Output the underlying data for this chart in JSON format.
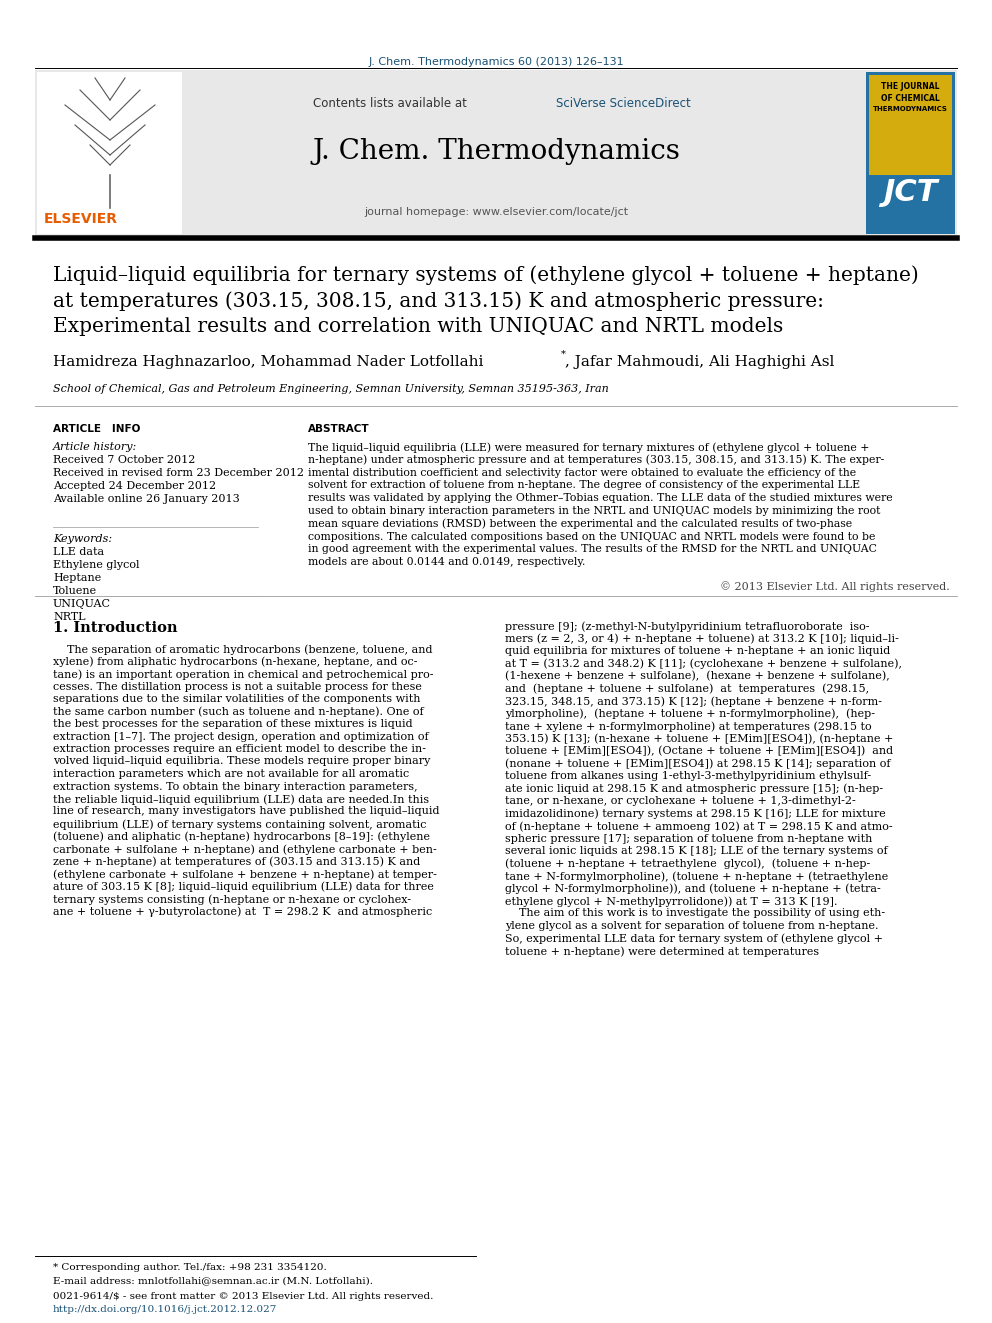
{
  "journal_ref": "J. Chem. Thermodynamics 60 (2013) 126–131",
  "journal_ref_color": "#1a5276",
  "header_bg_color": "#e8e8e8",
  "journal_name": "J. Chem. Thermodynamics",
  "journal_homepage": "journal homepage: www.elsevier.com/locate/jct",
  "title_line1": "Liquid–liquid equilibria for ternary systems of (ethylene glycol + toluene + heptane)",
  "title_line2": "at temperatures (303.15, 308.15, and 313.15) K and atmospheric pressure:",
  "title_line3": "Experimental results and correlation with UNIQUAC and NRTL models",
  "author_main": "Hamidreza Haghnazarloo, Mohammad Nader Lotfollahi",
  "author_rest": ", Jafar Mahmoudi, Ali Haghighi Asl",
  "affiliation": "School of Chemical, Gas and Petroleum Engineering, Semnan University, Semnan 35195-363, Iran",
  "article_info_title": "ARTICLE   INFO",
  "article_history_title": "Article history:",
  "article_history": [
    "Received 7 October 2012",
    "Received in revised form 23 December 2012",
    "Accepted 24 December 2012",
    "Available online 26 January 2013"
  ],
  "keywords_title": "Keywords:",
  "keywords": [
    "LLE data",
    "Ethylene glycol",
    "Heptane",
    "Toluene",
    "UNIQUAC",
    "NRTL"
  ],
  "abstract_title": "ABSTRACT",
  "abstract_lines": [
    "The liquid–liquid equilibria (LLE) were measured for ternary mixtures of (ethylene glycol + toluene +",
    "n-heptane) under atmospheric pressure and at temperatures (303.15, 308.15, and 313.15) K. The exper-",
    "imental distribution coefficient and selectivity factor were obtained to evaluate the efficiency of the",
    "solvent for extraction of toluene from n-heptane. The degree of consistency of the experimental LLE",
    "results was validated by applying the Othmer–Tobias equation. The LLE data of the studied mixtures were",
    "used to obtain binary interaction parameters in the NRTL and UNIQUAC models by minimizing the root",
    "mean square deviations (RMSD) between the experimental and the calculated results of two-phase",
    "compositions. The calculated compositions based on the UNIQUAC and NRTL models were found to be",
    "in good agreement with the experimental values. The results of the RMSD for the NRTL and UNIQUAC",
    "models are about 0.0144 and 0.0149, respectively."
  ],
  "abstract_copyright": "© 2013 Elsevier Ltd. All rights reserved.",
  "intro_title": "1. Introduction",
  "intro_col1_lines": [
    "    The separation of aromatic hydrocarbons (benzene, toluene, and",
    "xylene) from aliphatic hydrocarbons (n-hexane, heptane, and oc-",
    "tane) is an important operation in chemical and petrochemical pro-",
    "cesses. The distillation process is not a suitable process for these",
    "separations due to the similar volatilities of the components with",
    "the same carbon number (such as toluene and n-heptane). One of",
    "the best processes for the separation of these mixtures is liquid",
    "extraction [1–7]. The project design, operation and optimization of",
    "extraction processes require an efficient model to describe the in-",
    "volved liquid–liquid equilibria. These models require proper binary",
    "interaction parameters which are not available for all aromatic",
    "extraction systems. To obtain the binary interaction parameters,",
    "the reliable liquid–liquid equilibrium (LLE) data are needed.In this",
    "line of research, many investigators have published the liquid–liquid",
    "equilibrium (LLE) of ternary systems containing solvent, aromatic",
    "(toluene) and aliphatic (n-heptane) hydrocarbons [8–19]: (ethylene",
    "carbonate + sulfolane + n-heptane) and (ethylene carbonate + ben-",
    "zene + n-heptane) at temperatures of (303.15 and 313.15) K and",
    "(ethylene carbonate + sulfolane + benzene + n-heptane) at temper-",
    "ature of 303.15 K [8]; liquid–liquid equilibrium (LLE) data for three",
    "ternary systems consisting (n-heptane or n-hexane or cyclohex-",
    "ane + toluene + γ-butyrolactone) at  T = 298.2 K  and atmospheric"
  ],
  "intro_col2_lines": [
    "pressure [9]; (z-methyl-N-butylpyridinium tetrafluoroborate  iso-",
    "mers (z = 2, 3, or 4) + n-heptane + toluene) at 313.2 K [10]; liquid–li-",
    "quid equilibria for mixtures of toluene + n-heptane + an ionic liquid",
    "at T = (313.2 and 348.2) K [11]; (cyclohexane + benzene + sulfolane),",
    "(1-hexene + benzene + sulfolane),  (hexane + benzene + sulfolane),",
    "and  (heptane + toluene + sulfolane)  at  temperatures  (298.15,",
    "323.15, 348.15, and 373.15) K [12]; (heptane + benzene + n-form-",
    "ylmorpholine),  (heptane + toluene + n-formylmorpholine),  (hep-",
    "tane + xylene + n-formylmorpholine) at temperatures (298.15 to",
    "353.15) K [13]; (n-hexane + toluene + [EMim][ESO4]), (n-heptane +",
    "toluene + [EMim][ESO4]), (Octane + toluene + [EMim][ESO4])  and",
    "(nonane + toluene + [EMim][ESO4]) at 298.15 K [14]; separation of",
    "toluene from alkanes using 1-ethyl-3-methylpyridinium ethylsulf-",
    "ate ionic liquid at 298.15 K and atmospheric pressure [15]; (n-hep-",
    "tane, or n-hexane, or cyclohexane + toluene + 1,3-dimethyl-2-",
    "imidazolidinone) ternary systems at 298.15 K [16]; LLE for mixture",
    "of (n-heptane + toluene + ammoeng 102) at T = 298.15 K and atmo-",
    "spheric pressure [17]; separation of toluene from n-heptane with",
    "several ionic liquids at 298.15 K [18]; LLE of the ternary systems of",
    "(toluene + n-heptane + tetraethylene  glycol),  (toluene + n-hep-",
    "tane + N-formylmorpholine), (toluene + n-heptane + (tetraethylene",
    "glycol + N-formylmorpholine)), and (toluene + n-heptane + (tetra-",
    "ethylene glycol + N-methylpyrrolidone)) at T = 313 K [19].",
    "    The aim of this work is to investigate the possibility of using eth-",
    "ylene glycol as a solvent for separation of toluene from n-heptane.",
    "So, experimental LLE data for ternary system of (ethylene glycol +",
    "toluene + n-heptane) were determined at temperatures"
  ],
  "footer_line1": "* Corresponding author. Tel./fax: +98 231 3354120.",
  "footer_line2": "E-mail address: mnlotfollahi@semnan.ac.ir (M.N. Lotfollahi).",
  "footer_issn": "0021-9614/$ - see front matter © 2013 Elsevier Ltd. All rights reserved.",
  "footer_doi": "http://dx.doi.org/10.1016/j.jct.2012.12.027",
  "elsevier_color": "#e85c00",
  "link_color": "#1a5276"
}
